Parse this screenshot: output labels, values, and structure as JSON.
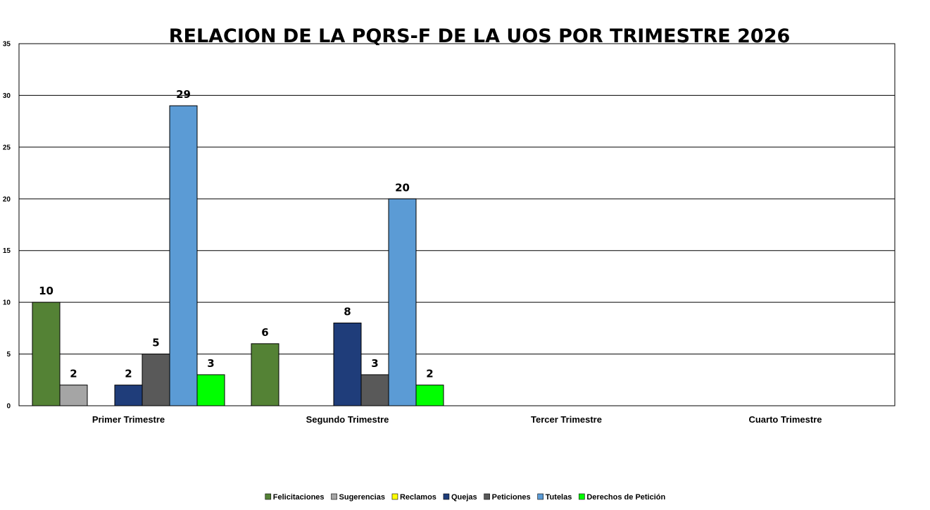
{
  "chart_data": {
    "type": "bar",
    "title": "RELACION DE LA PQRS-F DE LA UOS POR TRIMESTRE 2026",
    "xlabel": "",
    "ylabel": "",
    "ylim": [
      0,
      35
    ],
    "yticks": [
      0,
      5,
      10,
      15,
      20,
      25,
      30,
      35
    ],
    "grid": true,
    "legend_position": "bottom",
    "categories": [
      "Primer Trimestre",
      "Segundo Trimestre",
      "Tercer Trimestre",
      "Cuarto Trimestre"
    ],
    "series": [
      {
        "name": "Felicitaciones",
        "color": "#548235",
        "values": [
          10,
          6,
          null,
          null
        ]
      },
      {
        "name": "Sugerencias",
        "color": "#a5a5a5",
        "values": [
          2,
          null,
          null,
          null
        ]
      },
      {
        "name": "Reclamos",
        "color": "#ffff00",
        "values": [
          null,
          null,
          null,
          null
        ]
      },
      {
        "name": "Quejas",
        "color": "#1f3d7a",
        "values": [
          2,
          8,
          null,
          null
        ]
      },
      {
        "name": "Peticiones",
        "color": "#595959",
        "values": [
          5,
          3,
          null,
          null
        ]
      },
      {
        "name": "Tutelas",
        "color": "#5b9bd5",
        "values": [
          29,
          20,
          null,
          null
        ]
      },
      {
        "name": "Derechos de Petición",
        "color": "#00ff00",
        "values": [
          3,
          2,
          null,
          null
        ]
      }
    ]
  }
}
